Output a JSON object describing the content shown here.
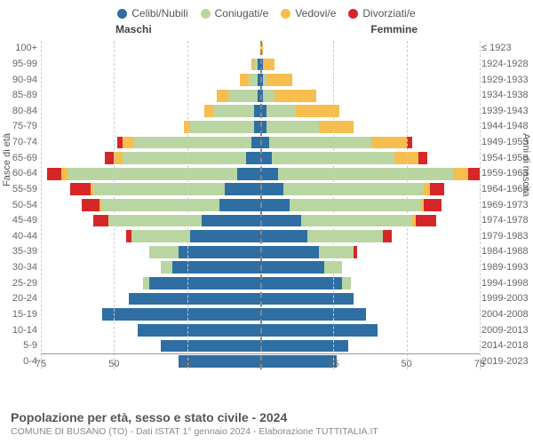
{
  "legend": [
    {
      "label": "Celibi/Nubili",
      "color": "#2f6ea3"
    },
    {
      "label": "Coniugati/e",
      "color": "#b9d6a2"
    },
    {
      "label": "Vedovi/e",
      "color": "#f6bd4f"
    },
    {
      "label": "Divorziati/e",
      "color": "#d62728"
    }
  ],
  "gender_labels": {
    "male": "Maschi",
    "female": "Femmine"
  },
  "y_axis_left_title": "Fasce di età",
  "y_axis_right_title": "Anni di nascita",
  "age_bands": [
    "100+",
    "95-99",
    "90-94",
    "85-89",
    "80-84",
    "75-79",
    "70-74",
    "65-69",
    "60-64",
    "55-59",
    "50-54",
    "45-49",
    "40-44",
    "35-39",
    "30-34",
    "25-29",
    "20-24",
    "15-19",
    "10-14",
    "5-9",
    "0-4"
  ],
  "birth_years": [
    "≤ 1923",
    "1924-1928",
    "1929-1933",
    "1934-1938",
    "1939-1943",
    "1944-1948",
    "1949-1953",
    "1954-1958",
    "1959-1963",
    "1964-1968",
    "1969-1973",
    "1974-1978",
    "1979-1983",
    "1984-1988",
    "1989-1993",
    "1994-1998",
    "1999-2003",
    "2004-2008",
    "2009-2013",
    "2014-2018",
    "2019-2023"
  ],
  "x_axis": {
    "max": 75,
    "ticks": [
      75,
      50,
      25,
      0,
      25,
      50,
      75
    ],
    "tick_positions_pct": [
      0,
      16.67,
      33.33,
      50,
      66.67,
      83.33,
      100
    ]
  },
  "colors": {
    "celibi": "#2f6ea3",
    "coniugati": "#b9d6a2",
    "vedovi": "#f6bd4f",
    "divorziati": "#d62728",
    "grid": "#cccccc",
    "center": "#888888",
    "bg": "#ffffff",
    "text_muted": "#666666"
  },
  "chart_type": "population-pyramid-stacked",
  "data": {
    "male": [
      {
        "celibi": 0,
        "coniugati": 0,
        "vedovi": 0,
        "divorziati": 0
      },
      {
        "celibi": 1,
        "coniugati": 1,
        "vedovi": 1,
        "divorziati": 0
      },
      {
        "celibi": 1,
        "coniugati": 3,
        "vedovi": 3,
        "divorziati": 0
      },
      {
        "celibi": 1,
        "coniugati": 10,
        "vedovi": 4,
        "divorziati": 0
      },
      {
        "celibi": 2,
        "coniugati": 14,
        "vedovi": 3,
        "divorziati": 0
      },
      {
        "celibi": 2,
        "coniugati": 22,
        "vedovi": 2,
        "divorziati": 0
      },
      {
        "celibi": 3,
        "coniugati": 40,
        "vedovi": 4,
        "divorziati": 2
      },
      {
        "celibi": 5,
        "coniugati": 42,
        "vedovi": 3,
        "divorziati": 3
      },
      {
        "celibi": 8,
        "coniugati": 58,
        "vedovi": 2,
        "divorziati": 5
      },
      {
        "celibi": 12,
        "coniugati": 45,
        "vedovi": 1,
        "divorziati": 7
      },
      {
        "celibi": 14,
        "coniugati": 40,
        "vedovi": 1,
        "divorziati": 6
      },
      {
        "celibi": 20,
        "coniugati": 32,
        "vedovi": 0,
        "divorziati": 5
      },
      {
        "celibi": 24,
        "coniugati": 20,
        "vedovi": 0,
        "divorziati": 2
      },
      {
        "celibi": 28,
        "coniugati": 10,
        "vedovi": 0,
        "divorziati": 0
      },
      {
        "celibi": 30,
        "coniugati": 4,
        "vedovi": 0,
        "divorziati": 0
      },
      {
        "celibi": 38,
        "coniugati": 2,
        "vedovi": 0,
        "divorziati": 0
      },
      {
        "celibi": 45,
        "coniugati": 0,
        "vedovi": 0,
        "divorziati": 0
      },
      {
        "celibi": 54,
        "coniugati": 0,
        "vedovi": 0,
        "divorziati": 0
      },
      {
        "celibi": 42,
        "coniugati": 0,
        "vedovi": 0,
        "divorziati": 0
      },
      {
        "celibi": 34,
        "coniugati": 0,
        "vedovi": 0,
        "divorziati": 0
      },
      {
        "celibi": 28,
        "coniugati": 0,
        "vedovi": 0,
        "divorziati": 0
      }
    ],
    "female": [
      {
        "celibi": 0,
        "coniugati": 0,
        "vedovi": 1,
        "divorziati": 0
      },
      {
        "celibi": 1,
        "coniugati": 0,
        "vedovi": 4,
        "divorziati": 0
      },
      {
        "celibi": 1,
        "coniugati": 1,
        "vedovi": 9,
        "divorziati": 0
      },
      {
        "celibi": 1,
        "coniugati": 4,
        "vedovi": 14,
        "divorziati": 0
      },
      {
        "celibi": 2,
        "coniugati": 10,
        "vedovi": 15,
        "divorziati": 0
      },
      {
        "celibi": 2,
        "coniugati": 18,
        "vedovi": 12,
        "divorziati": 0
      },
      {
        "celibi": 3,
        "coniugati": 35,
        "vedovi": 12,
        "divorziati": 2
      },
      {
        "celibi": 4,
        "coniugati": 42,
        "vedovi": 8,
        "divorziati": 3
      },
      {
        "celibi": 6,
        "coniugati": 60,
        "vedovi": 5,
        "divorziati": 4
      },
      {
        "celibi": 8,
        "coniugati": 48,
        "vedovi": 2,
        "divorziati": 5
      },
      {
        "celibi": 10,
        "coniugati": 45,
        "vedovi": 1,
        "divorziati": 6
      },
      {
        "celibi": 14,
        "coniugati": 38,
        "vedovi": 1,
        "divorziati": 7
      },
      {
        "celibi": 16,
        "coniugati": 26,
        "vedovi": 0,
        "divorziati": 3
      },
      {
        "celibi": 20,
        "coniugati": 12,
        "vedovi": 0,
        "divorziati": 1
      },
      {
        "celibi": 22,
        "coniugati": 6,
        "vedovi": 0,
        "divorziati": 0
      },
      {
        "celibi": 28,
        "coniugati": 3,
        "vedovi": 0,
        "divorziati": 0
      },
      {
        "celibi": 32,
        "coniugati": 0,
        "vedovi": 0,
        "divorziati": 0
      },
      {
        "celibi": 36,
        "coniugati": 0,
        "vedovi": 0,
        "divorziati": 0
      },
      {
        "celibi": 40,
        "coniugati": 0,
        "vedovi": 0,
        "divorziati": 0
      },
      {
        "celibi": 30,
        "coniugati": 0,
        "vedovi": 0,
        "divorziati": 0
      },
      {
        "celibi": 26,
        "coniugati": 0,
        "vedovi": 0,
        "divorziati": 0
      }
    ]
  },
  "title": "Popolazione per età, sesso e stato civile - 2024",
  "subtitle": "COMUNE DI BUSANO (TO) - Dati ISTAT 1° gennaio 2024 - Elaborazione TUTTITALIA.IT",
  "typography": {
    "legend_fontsize": 12,
    "axis_fontsize": 11,
    "title_fontsize": 14,
    "subtitle_fontsize": 10.5
  }
}
